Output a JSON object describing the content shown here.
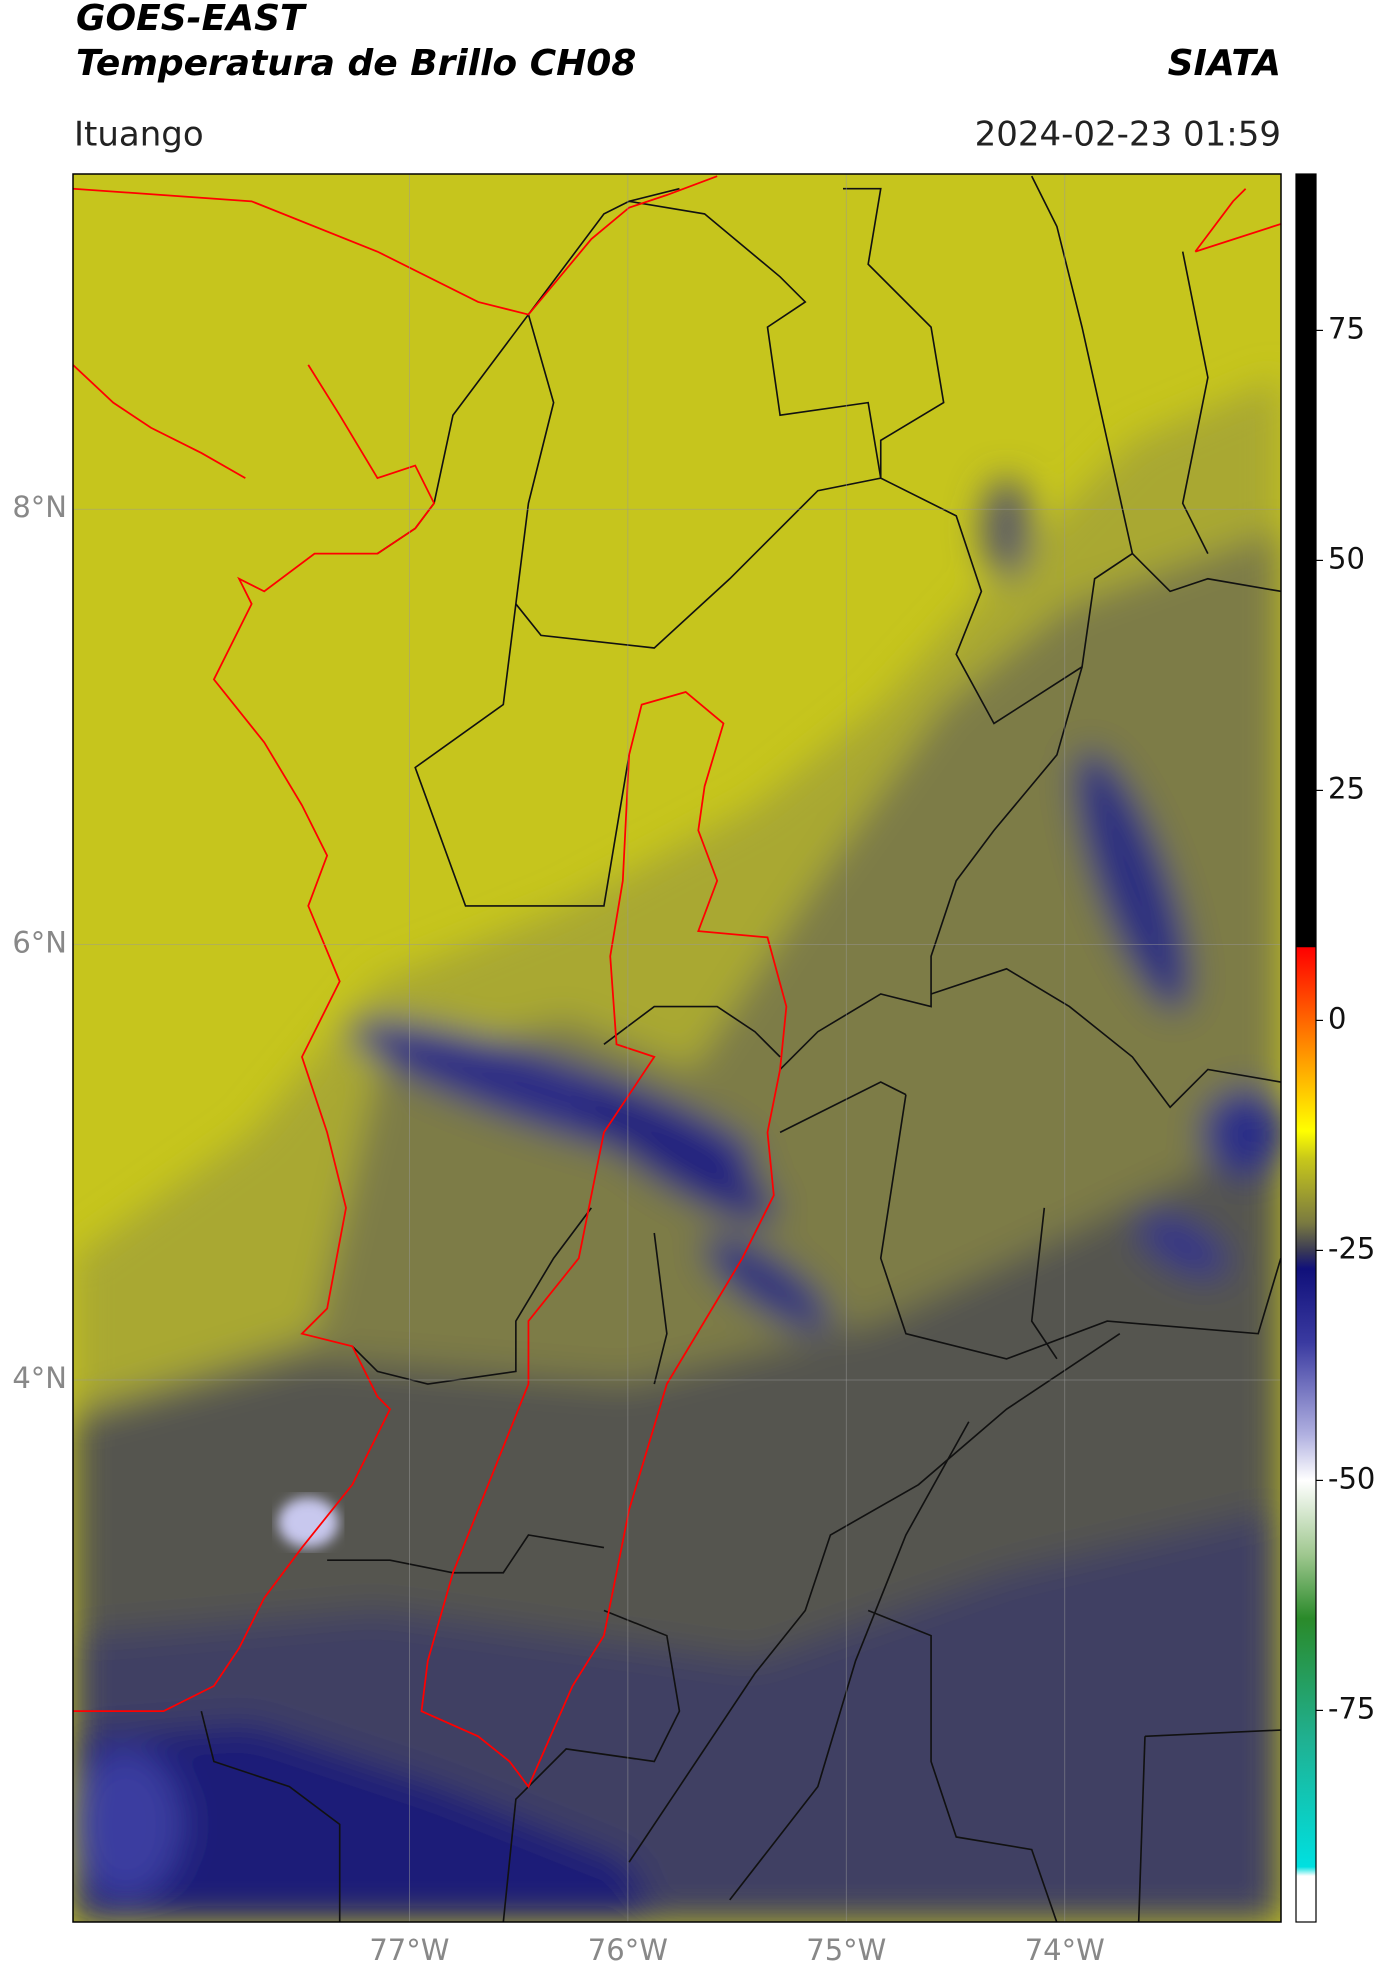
{
  "header": {
    "title": [
      "GOES-EAST",
      "Temperatura de Brillo CH08"
    ],
    "source": "SIATA",
    "location": "Ituango",
    "datetime": "2024-02-23 01:59"
  },
  "map": {
    "lon_range": [
      -78.54,
      -73.01
    ],
    "lat_range": [
      1.51,
      9.54
    ],
    "lon_ticks": [
      {
        "value": -77,
        "label": "77°W"
      },
      {
        "value": -76,
        "label": "76°W"
      },
      {
        "value": -75,
        "label": "75°W"
      },
      {
        "value": -74,
        "label": "74°W"
      }
    ],
    "lat_ticks": [
      {
        "value": 4,
        "label": "4°N"
      },
      {
        "value": 6,
        "label": "6°N"
      },
      {
        "value": 8,
        "label": "8°N"
      }
    ],
    "grid": true
  },
  "colorbar": {
    "range": [
      -98,
      92
    ],
    "ticks": [
      -75,
      -50,
      -25,
      0,
      25,
      50,
      75
    ],
    "stops": [
      {
        "value": 92,
        "color": "#000000"
      },
      {
        "value": 8,
        "color": "#000000"
      },
      {
        "value": 7.9,
        "color": "#ff0000"
      },
      {
        "value": -2,
        "color": "#ff8000"
      },
      {
        "value": -12,
        "color": "#ffff00"
      },
      {
        "value": -15,
        "color": "#c8c81a"
      },
      {
        "value": -22,
        "color": "#7a7a40"
      },
      {
        "value": -25,
        "color": "#3a3a55"
      },
      {
        "value": -27,
        "color": "#10107a"
      },
      {
        "value": -35,
        "color": "#3a3aa0"
      },
      {
        "value": -45,
        "color": "#b0b0e0"
      },
      {
        "value": -50,
        "color": "#ffffff"
      },
      {
        "value": -58,
        "color": "#a0c890"
      },
      {
        "value": -65,
        "color": "#2a8a2a"
      },
      {
        "value": -78,
        "color": "#20b090"
      },
      {
        "value": -92,
        "color": "#00e0e0"
      },
      {
        "value": -93,
        "color": "#ffffff"
      },
      {
        "value": -98,
        "color": "#ffffff"
      }
    ]
  }
}
